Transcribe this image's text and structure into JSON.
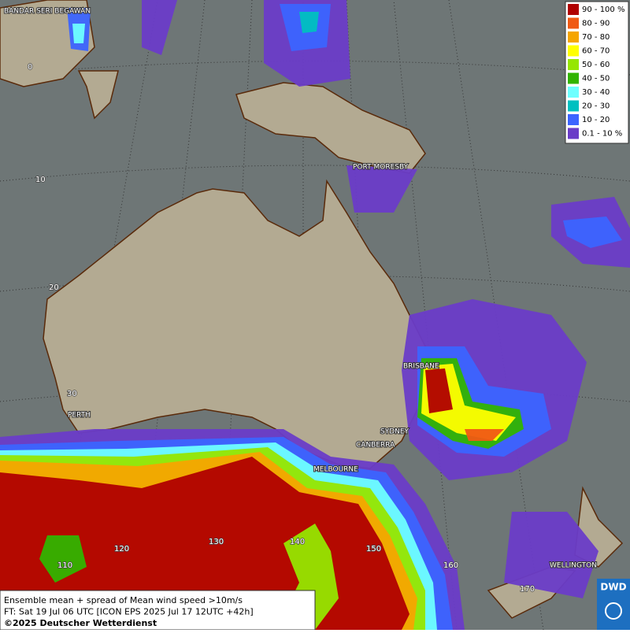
{
  "map": {
    "legend": [
      {
        "label": "90 - 100 %",
        "color": "#b00000"
      },
      {
        "label": "80 - 90",
        "color": "#f05a14"
      },
      {
        "label": "70 - 80",
        "color": "#f5a500"
      },
      {
        "label": "60 - 70",
        "color": "#ffff00"
      },
      {
        "label": "50 - 60",
        "color": "#96e600"
      },
      {
        "label": "40 - 50",
        "color": "#32b400"
      },
      {
        "label": "30 - 40",
        "color": "#6effff"
      },
      {
        "label": "20 - 30",
        "color": "#00c0c0"
      },
      {
        "label": "10 - 20",
        "color": "#3c64ff"
      },
      {
        "label": "0.1 - 10 %",
        "color": "#6a3cc8"
      }
    ],
    "cities": [
      "BANDAR SERI BEGAWAN",
      "PORT MORESBY",
      "BRISBANE",
      "SYDNEY",
      "CANBERRA",
      "MELBOURNE",
      "PERTH",
      "WELLINGTON"
    ],
    "grid_labels": [
      "0",
      "10",
      "20",
      "30",
      "110",
      "120",
      "130",
      "140",
      "150",
      "160",
      "170"
    ],
    "caption": [
      "Ensemble mean + spread of Mean wind speed >10m/s",
      "FT: Sat 19 Jul 06 UTC [ICON EPS 2025 Jul 17 12UTC +42h]",
      "©2025 Deutscher Wetterdienst"
    ],
    "logo": "DWD"
  }
}
